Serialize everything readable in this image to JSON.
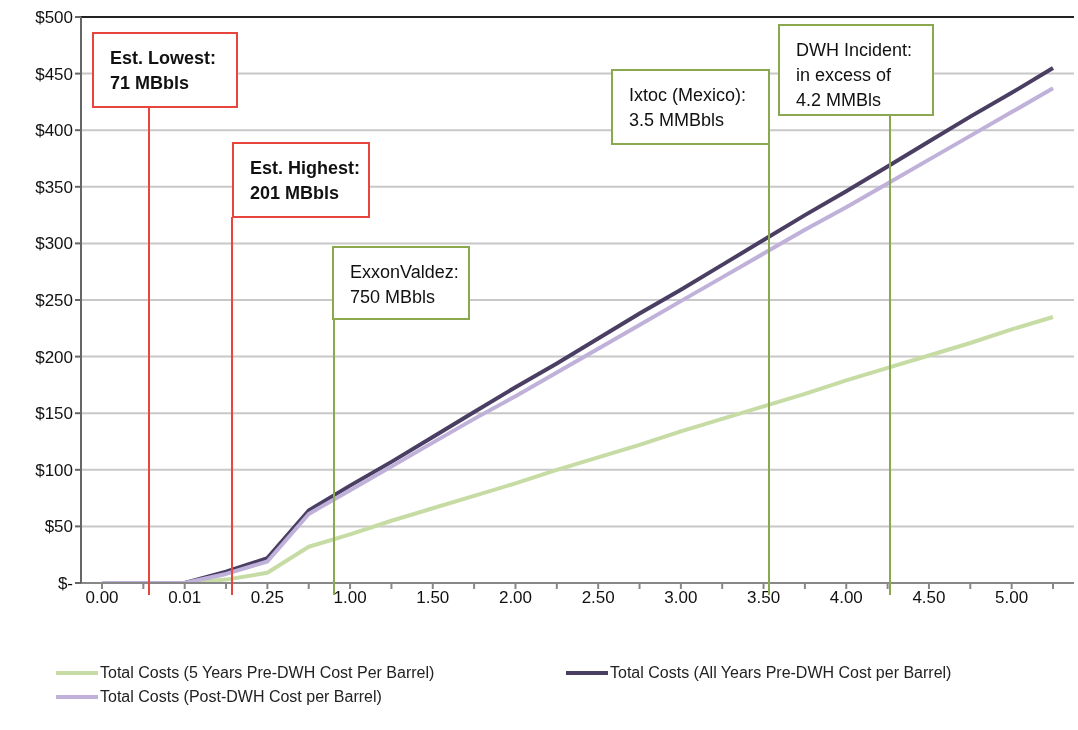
{
  "chart_data": {
    "type": "line",
    "categories": [
      "0.00",
      null,
      "0.01",
      null,
      "0.25",
      null,
      "1.00",
      null,
      "1.50",
      null,
      "2.00",
      null,
      "2.50",
      null,
      "3.00",
      null,
      "3.50",
      null,
      "4.00",
      null,
      "4.50",
      null,
      "5.00",
      null
    ],
    "series": [
      {
        "name": "Total Costs (5 Years Pre-DWH Cost Per Barrel)",
        "color": "#c6dca4",
        "values": [
          0,
          0,
          0,
          3,
          9,
          32,
          43,
          55,
          66,
          77,
          88,
          100,
          111,
          122,
          134,
          145,
          156,
          167,
          179,
          190,
          201,
          212,
          224,
          235
        ]
      },
      {
        "name": "Total Costs (All Years Pre-DWH Cost per Barrel)",
        "color": "#4a3f63",
        "values": [
          0,
          0,
          0,
          10,
          22,
          64,
          86,
          107,
          129,
          151,
          173,
          194,
          216,
          238,
          259,
          281,
          303,
          325,
          346,
          368,
          390,
          412,
          433,
          455
        ]
      },
      {
        "name": "Total Costs (Post-DWH Cost per Barrel)",
        "color": "#bfb1d9",
        "values": [
          0,
          0,
          0,
          8,
          19,
          61,
          82,
          103,
          124,
          145,
          165,
          186,
          207,
          228,
          249,
          270,
          291,
          312,
          332,
          353,
          374,
          395,
          416,
          437
        ]
      }
    ],
    "ylim": [
      0,
      500
    ],
    "yticks": [
      {
        "value": 0,
        "label": "$-"
      },
      {
        "value": 50,
        "label": "$50"
      },
      {
        "value": 100,
        "label": "$100"
      },
      {
        "value": 150,
        "label": "$150"
      },
      {
        "value": 200,
        "label": "$200"
      },
      {
        "value": 250,
        "label": "$250"
      },
      {
        "value": 300,
        "label": "$300"
      },
      {
        "value": 350,
        "label": "$350"
      },
      {
        "value": 400,
        "label": "$400"
      },
      {
        "value": 450,
        "label": "$450"
      },
      {
        "value": 500,
        "label": "$500"
      }
    ],
    "annotations": [
      "Est. Lowest:\n71 MBbls",
      "Est. Highest:\n201 MBbls",
      "ExxonValdez:\n750 MBbls",
      "Ixtoc (Mexico):\n3.5 MMBbls",
      "DWH Incident:\nin excess of\n4.2 MMBls"
    ],
    "grid": "y",
    "legend": "bottom",
    "marker": "none",
    "line_style": "solid"
  }
}
